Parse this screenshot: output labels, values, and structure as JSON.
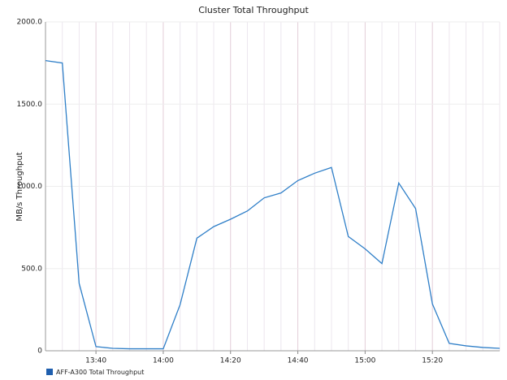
{
  "chart_data": {
    "type": "line",
    "title": "Cluster Total Throughput",
    "y_label": "MB/s Throughput",
    "categories": [
      null,
      null,
      null,
      "13:40",
      null,
      null,
      null,
      "14:00",
      null,
      null,
      null,
      "14:20",
      null,
      null,
      null,
      "14:40",
      null,
      null,
      null,
      "15:00",
      null,
      null,
      null,
      "15:20",
      null,
      null,
      null,
      null
    ],
    "series": [
      {
        "name": "AFF-A300 Total Throughput",
        "color": "#2f7fc8",
        "values": [
          1765,
          1750,
          410,
          25,
          15,
          12,
          12,
          12,
          280,
          685,
          755,
          800,
          850,
          930,
          960,
          1035,
          1080,
          1115,
          695,
          620,
          530,
          1020,
          865,
          285,
          45,
          30,
          20,
          15
        ]
      }
    ],
    "ylim": [
      0,
      2000
    ],
    "yticks": [
      0,
      {
        "value": 500,
        "label": "500.0"
      },
      {
        "value": 1000,
        "label": "1000.0"
      },
      {
        "value": 1500,
        "label": "1500.0"
      },
      {
        "value": 2000,
        "label": "2000.0"
      }
    ],
    "grid": true
  }
}
